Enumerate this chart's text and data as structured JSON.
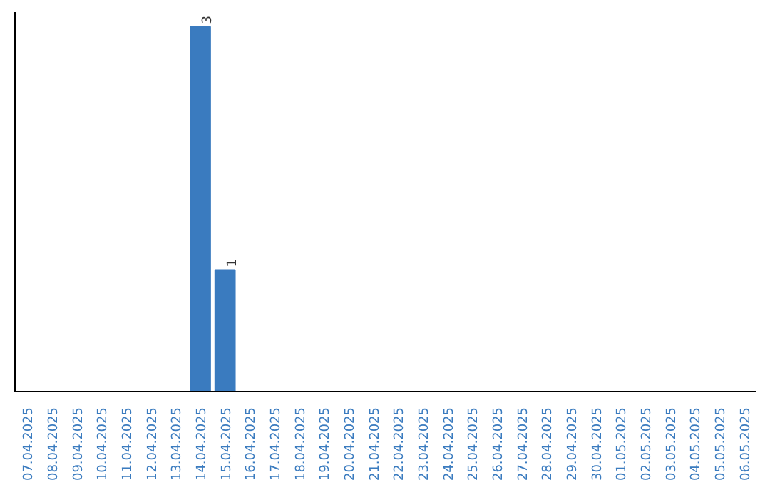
{
  "chart_data": {
    "type": "bar",
    "categories": [
      "07.04.2025",
      "08.04.2025",
      "09.04.2025",
      "10.04.2025",
      "11.04.2025",
      "12.04.2025",
      "13.04.2025",
      "14.04.2025",
      "15.04.2025",
      "16.04.2025",
      "17.04.2025",
      "18.04.2025",
      "19.04.2025",
      "20.04.2025",
      "21.04.2025",
      "22.04.2025",
      "23.04.2025",
      "24.04.2025",
      "25.04.2025",
      "26.04.2025",
      "27.04.2025",
      "28.04.2025",
      "29.04.2025",
      "30.04.2025",
      "01.05.2025",
      "02.05.2025",
      "03.05.2025",
      "04.05.2025",
      "05.05.2025",
      "06.05.2025"
    ],
    "values": [
      0,
      0,
      0,
      0,
      0,
      0,
      0,
      3,
      1,
      0,
      0,
      0,
      0,
      0,
      0,
      0,
      0,
      0,
      0,
      0,
      0,
      0,
      0,
      0,
      0,
      0,
      0,
      0,
      0,
      0
    ],
    "value_labels": [
      null,
      null,
      null,
      null,
      null,
      null,
      null,
      "3",
      "1",
      null,
      null,
      null,
      null,
      null,
      null,
      null,
      null,
      null,
      null,
      null,
      null,
      null,
      null,
      null,
      null,
      null,
      null,
      null,
      null,
      null
    ],
    "color": "#3a7bbf",
    "tick_labels": "x",
    "grid": false
  }
}
